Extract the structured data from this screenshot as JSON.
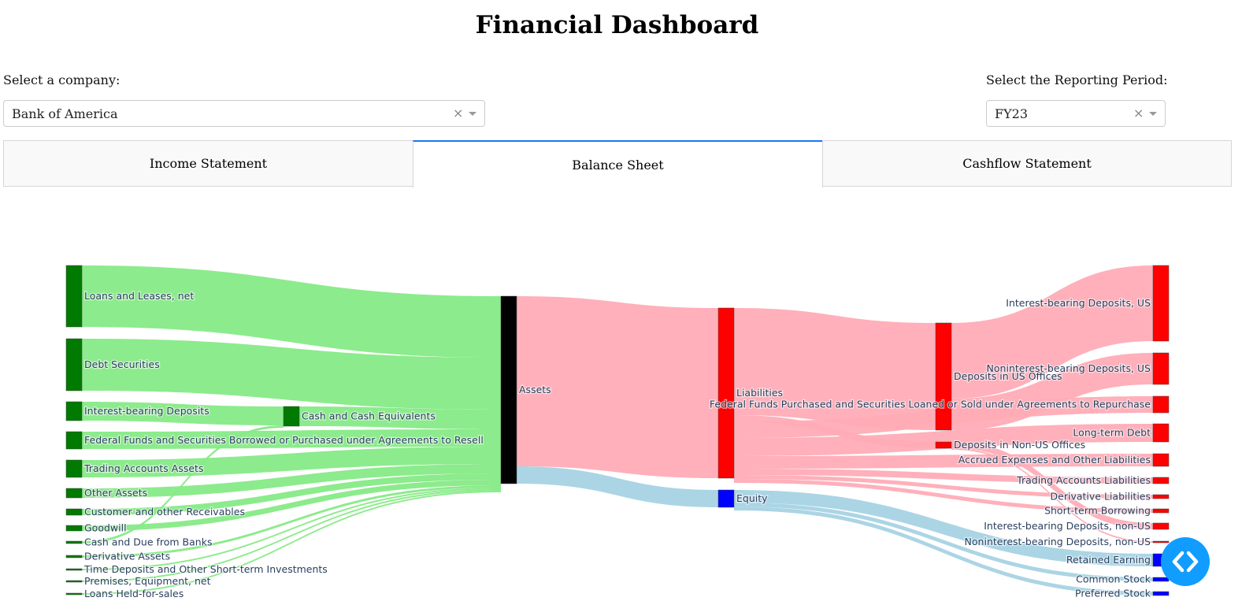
{
  "page": {
    "title": "Financial Dashboard"
  },
  "company_select": {
    "label": "Select a company:",
    "value": "Bank of America",
    "clear_icon": "×"
  },
  "period_select": {
    "label": "Select the Reporting Period:",
    "value": "FY23",
    "clear_icon": "×"
  },
  "tabs": [
    {
      "label": "Income Statement",
      "active": false
    },
    {
      "label": "Balance Sheet",
      "active": true
    },
    {
      "label": "Cashflow Statement",
      "active": false
    }
  ],
  "sankey": {
    "colors": {
      "asset_node": "#007a00",
      "asset_link": "#86ea86",
      "assets_node": "#000000",
      "liability_node": "#ff0000",
      "liability_link": "#ffacb6",
      "equity_node": "#0000ff",
      "equity_link": "#a7d3e4"
    },
    "nodes": {
      "loans": "Loans and Leases, net",
      "debt": "Debt Securities",
      "ibd_asset": "Interest-bearing Deposits",
      "fedfunds_asset": "Federal Funds and Securities Borrowed or Purchased under Agreements to Resell",
      "trading_asset": "Trading Accounts Assets",
      "other_assets": "Other Assets",
      "receivables": "Customer and other Receivables",
      "goodwill": "Goodwill",
      "cash_due": "Cash and Due from Banks",
      "deriv_asset": "Derivative Assets",
      "time_dep": "Time Deposits and Other Short-term Investments",
      "premises": "Premises, Equipment, net",
      "held_sale": "Loans Held-for-sales",
      "cash_eq": "Cash and Cash Equivalents",
      "assets": "Assets",
      "liabilities": "Liabilities",
      "equity": "Equity",
      "dep_us": "Deposits in US Offices",
      "dep_nonus": "Deposits in Non-US Offices",
      "ibd_us": "Interest-bearing Deposits, US",
      "nibd_us": "Noninterest-bearing Deposits, US",
      "fedfunds_liab": "Federal Funds Purchased and Securities Loaned or Sold under Agreements to Repurchase",
      "ltd": "Long-term Debt",
      "accrued": "Accrued Expenses and Other Liabilities",
      "trading_liab": "Trading Accounts Liabilities",
      "deriv_liab": "Derivative Liabilities",
      "stb": "Short-term Borrowing",
      "ibd_nonus": "Interest-bearing Deposits, non-US",
      "nibd_nonus": "Noninterest-bearing Deposits, non-US",
      "retained": "Retained Earning",
      "common": "Common Stock",
      "preferred": "Preferred Stock"
    }
  },
  "fab": {
    "icon": "code-icon"
  }
}
